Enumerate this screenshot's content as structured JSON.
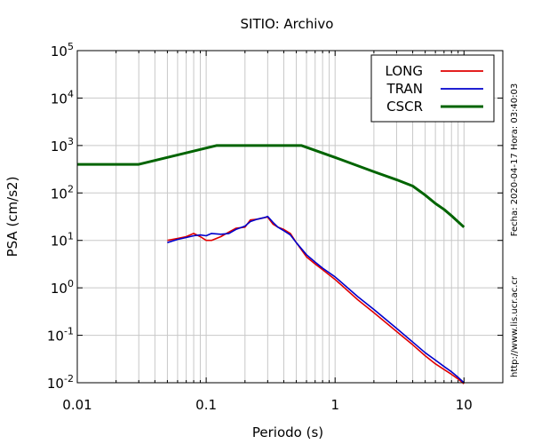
{
  "chart_data": {
    "type": "line",
    "title": "SITIO: Archivo",
    "xlabel": "Periodo (s)",
    "ylabel": "PSA (cm/s2)",
    "x_scale": "log",
    "y_scale": "log",
    "xlim": [
      0.01,
      20
    ],
    "ylim": [
      0.01,
      100000
    ],
    "x_ticks": [
      {
        "value": 0.01,
        "label": "0.01"
      },
      {
        "value": 0.1,
        "label": "0.1"
      },
      {
        "value": 1,
        "label": "1"
      },
      {
        "value": 10,
        "label": "10"
      }
    ],
    "y_ticks": [
      {
        "value": 0.01,
        "base": "10",
        "exp": "-2"
      },
      {
        "value": 0.1,
        "base": "10",
        "exp": "-1"
      },
      {
        "value": 1,
        "base": "10",
        "exp": "0"
      },
      {
        "value": 10,
        "base": "10",
        "exp": "1"
      },
      {
        "value": 100,
        "base": "10",
        "exp": "2"
      },
      {
        "value": 1000,
        "base": "10",
        "exp": "3"
      },
      {
        "value": 10000,
        "base": "10",
        "exp": "4"
      },
      {
        "value": 100000,
        "base": "10",
        "exp": "5"
      }
    ],
    "grid": true,
    "legend_position": "top-right",
    "side_annotations": {
      "date": "Fecha: 2020-04-17 Hora: 03:40:03",
      "url": "http://www.lis.ucr.ac.cr"
    },
    "series": [
      {
        "name": "LONG",
        "color": "#e00000",
        "x": [
          0.05,
          0.06,
          0.07,
          0.08,
          0.09,
          0.1,
          0.11,
          0.13,
          0.15,
          0.17,
          0.2,
          0.22,
          0.25,
          0.28,
          0.3,
          0.33,
          0.36,
          0.4,
          0.45,
          0.5,
          0.6,
          0.7,
          0.8,
          1,
          1.5,
          2,
          3,
          4,
          5,
          6,
          7,
          8,
          9,
          10
        ],
        "y": [
          10,
          11,
          12,
          14,
          12,
          10,
          10,
          12,
          15,
          18,
          19,
          27,
          28,
          30,
          31,
          22,
          19,
          17,
          14,
          9,
          4.5,
          3.2,
          2.4,
          1.5,
          0.56,
          0.3,
          0.12,
          0.063,
          0.037,
          0.025,
          0.019,
          0.015,
          0.012,
          0.0095
        ]
      },
      {
        "name": "TRAN",
        "color": "#0000cc",
        "x": [
          0.05,
          0.06,
          0.07,
          0.08,
          0.09,
          0.1,
          0.11,
          0.13,
          0.15,
          0.17,
          0.2,
          0.22,
          0.25,
          0.28,
          0.3,
          0.33,
          0.36,
          0.4,
          0.45,
          0.5,
          0.6,
          0.7,
          0.8,
          1,
          1.5,
          2,
          3,
          4,
          5,
          6,
          7,
          8,
          9,
          10
        ],
        "y": [
          9,
          10.5,
          11.5,
          12.5,
          13,
          12.5,
          14,
          13.5,
          14,
          17,
          20,
          25,
          28,
          30,
          32,
          24,
          19,
          16,
          13,
          9,
          5,
          3.5,
          2.6,
          1.7,
          0.65,
          0.35,
          0.14,
          0.072,
          0.043,
          0.03,
          0.022,
          0.017,
          0.013,
          0.01
        ]
      },
      {
        "name": "CSCR",
        "color": "#006400",
        "x": [
          0.01,
          0.03,
          0.12,
          0.55,
          1,
          2,
          3,
          4,
          5,
          6,
          7,
          8,
          10
        ],
        "y": [
          400,
          400,
          1000,
          1000,
          560,
          280,
          190,
          140,
          90,
          60,
          45,
          33,
          19
        ]
      }
    ]
  }
}
